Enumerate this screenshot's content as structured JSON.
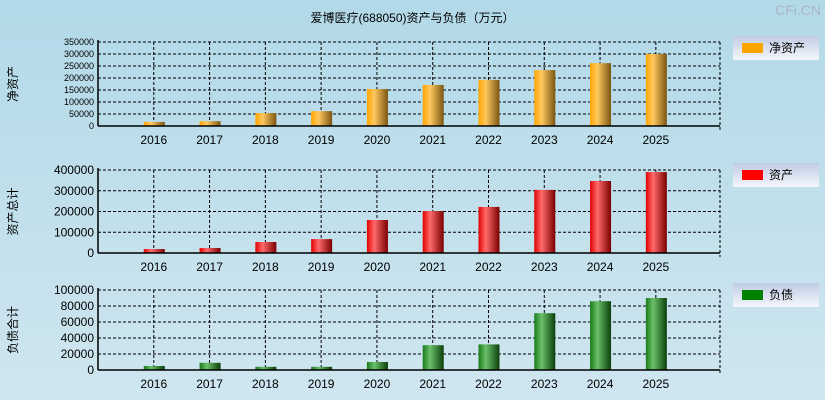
{
  "title": "爱博医疗(688050)资产与负债（万元）",
  "watermark": "CFi.CN",
  "chart_data": [
    {
      "type": "bar",
      "ylabel": "净资产",
      "legend": "净资产",
      "legend_position": "right",
      "color": "#ffa500",
      "grid": true,
      "ylim": [
        0,
        350000
      ],
      "yticks": [
        0,
        50000,
        100000,
        150000,
        200000,
        250000,
        300000,
        350000
      ],
      "categories": [
        "2016",
        "2017",
        "2018",
        "2019",
        "2020",
        "2021",
        "2022",
        "2023",
        "2024",
        "2025"
      ],
      "values": [
        17000,
        20000,
        54000,
        62000,
        154000,
        171000,
        192000,
        233000,
        262000,
        300000
      ]
    },
    {
      "type": "bar",
      "ylabel": "资产总计",
      "legend": "资产",
      "legend_position": "right",
      "color": "#ff0000",
      "grid": true,
      "ylim": [
        0,
        400000
      ],
      "yticks": [
        0,
        100000,
        200000,
        300000,
        400000
      ],
      "categories": [
        "2016",
        "2017",
        "2018",
        "2019",
        "2020",
        "2021",
        "2022",
        "2023",
        "2024",
        "2025"
      ],
      "values": [
        19000,
        24000,
        53000,
        67000,
        159000,
        202000,
        222000,
        304000,
        347000,
        390000
      ]
    },
    {
      "type": "bar",
      "ylabel": "负债合计",
      "legend": "负债",
      "legend_position": "right",
      "color": "#008000",
      "grid": true,
      "ylim": [
        0,
        100000
      ],
      "yticks": [
        0,
        20000,
        40000,
        60000,
        80000,
        100000
      ],
      "categories": [
        "2016",
        "2017",
        "2018",
        "2019",
        "2020",
        "2021",
        "2022",
        "2023",
        "2024",
        "2025"
      ],
      "values": [
        5000,
        9000,
        4000,
        4000,
        10000,
        31000,
        32000,
        71000,
        86000,
        90000
      ]
    }
  ]
}
